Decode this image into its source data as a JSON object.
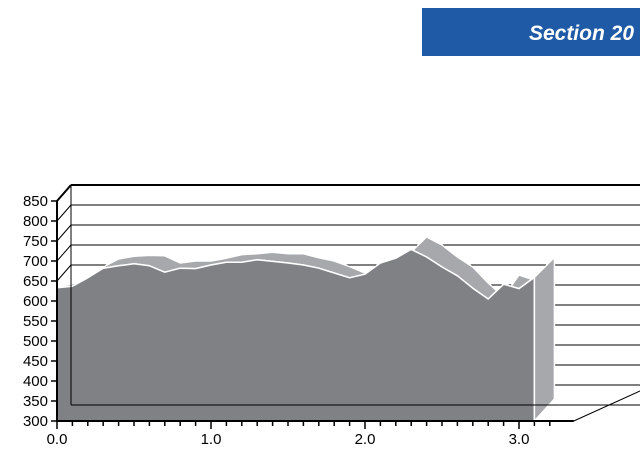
{
  "banner": {
    "text": "Section 20",
    "color": "#1f5aa6"
  },
  "chart_data": {
    "type": "area",
    "title": "",
    "xlabel": "",
    "ylabel": "",
    "xlim": [
      0.0,
      3.2
    ],
    "ylim": [
      300,
      850
    ],
    "y_ticks": [
      300,
      350,
      400,
      450,
      500,
      550,
      600,
      650,
      700,
      750,
      800,
      850
    ],
    "x_ticks": [
      0.0,
      1.0,
      2.0,
      3.0
    ],
    "grid": true,
    "style": "3d",
    "series": [
      {
        "color": "#a7a8ab",
        "x": [
          0.0,
          0.1,
          0.2,
          0.3,
          0.4,
          0.5,
          0.6,
          0.7,
          0.8,
          0.9,
          1.0,
          1.1,
          1.2,
          1.3,
          1.4,
          1.5,
          1.6,
          1.7,
          1.8,
          1.9,
          2.0,
          2.1,
          2.2,
          2.3,
          2.4,
          2.5,
          2.6,
          2.7,
          2.8,
          2.9,
          3.0,
          3.1
        ],
        "values": [
          634,
          643,
          656,
          685,
          705,
          712,
          714,
          713,
          695,
          700,
          700,
          707,
          716,
          718,
          722,
          718,
          718,
          708,
          700,
          686,
          670,
          684,
          708,
          723,
          760,
          740,
          710,
          685,
          645,
          610,
          665,
          652
        ]
      },
      {
        "color": "#808185",
        "x": [
          0.0,
          0.1,
          0.2,
          0.3,
          0.4,
          0.5,
          0.6,
          0.7,
          0.8,
          0.9,
          1.0,
          1.1,
          1.2,
          1.3,
          1.4,
          1.5,
          1.6,
          1.7,
          1.8,
          1.9,
          2.0,
          2.1,
          2.2,
          2.3,
          2.4,
          2.5,
          2.6,
          2.7,
          2.8,
          2.9,
          3.0,
          3.1
        ],
        "values": [
          633,
          637,
          658,
          682,
          688,
          693,
          688,
          672,
          682,
          681,
          690,
          697,
          697,
          703,
          699,
          695,
          690,
          682,
          670,
          658,
          667,
          695,
          707,
          729,
          710,
          685,
          663,
          632,
          605,
          642,
          631,
          659
        ]
      }
    ]
  }
}
